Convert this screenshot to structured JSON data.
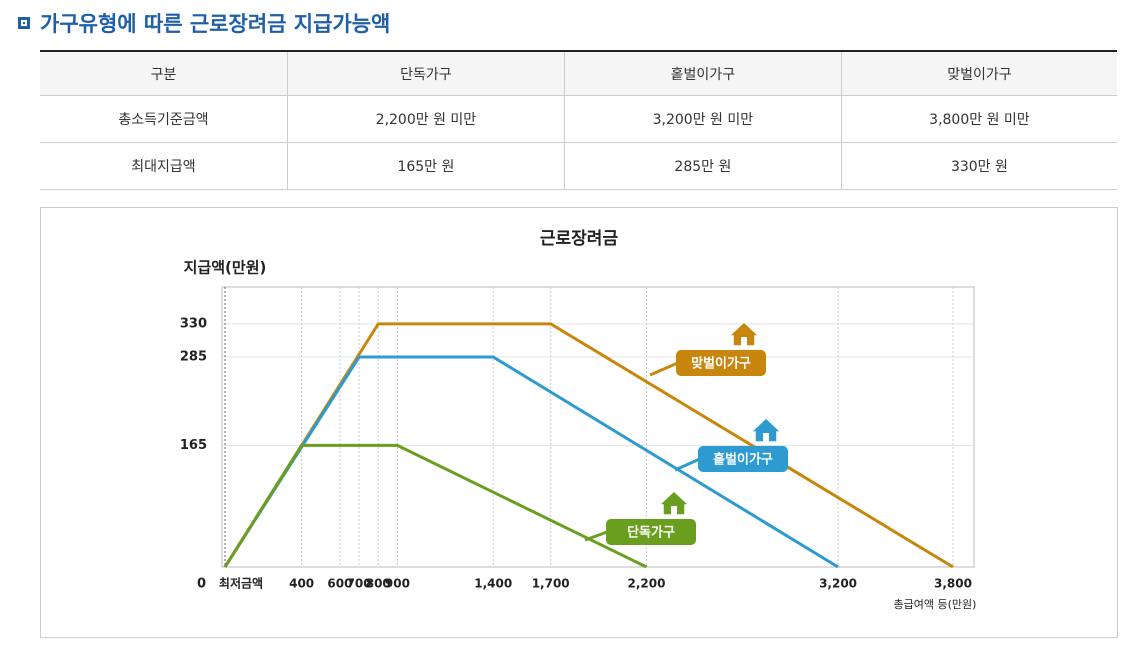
{
  "header": {
    "title": "가구유형에 따른 근로장려금 지급가능액"
  },
  "table": {
    "columns": [
      "구분",
      "단독가구",
      "홑벌이가구",
      "맞벌이가구"
    ],
    "rows": [
      [
        "총소득기준금액",
        "2,200만 원 미만",
        "3,200만 원 미만",
        "3,800만 원 미만"
      ],
      [
        "최대지급액",
        "165만 원",
        "285만 원",
        "330만 원"
      ]
    ]
  },
  "chart_data": {
    "type": "line",
    "title": "근로장려금",
    "y_label": "지급액(만원)",
    "x_label": "총급여액 등(만원)",
    "xlim": [
      0,
      3900
    ],
    "ylim": [
      0,
      380
    ],
    "xticks": [
      {
        "value": 0,
        "label": "최저금액"
      },
      400,
      600,
      700,
      800,
      900,
      {
        "value": 1400,
        "label": "1,400"
      },
      {
        "value": 1700,
        "label": "1,700"
      },
      {
        "value": 2200,
        "label": "2,200"
      },
      {
        "value": 3200,
        "label": "3,200"
      },
      {
        "value": 3800,
        "label": "3,800"
      }
    ],
    "yticks": [
      0,
      165,
      285,
      330
    ],
    "grid": true,
    "series": [
      {
        "name": "맞벌이가구",
        "color": "#c8860d",
        "x": [
          0,
          800,
          1700,
          3800
        ],
        "values": [
          0,
          330,
          330,
          0
        ]
      },
      {
        "name": "홑벌이가구",
        "color": "#2e9bd0",
        "x": [
          0,
          700,
          1400,
          3200
        ],
        "values": [
          0,
          285,
          285,
          0
        ]
      },
      {
        "name": "단독가구",
        "color": "#6a9e1f",
        "x": [
          0,
          400,
          900,
          2200
        ],
        "values": [
          0,
          165,
          165,
          0
        ]
      }
    ]
  }
}
